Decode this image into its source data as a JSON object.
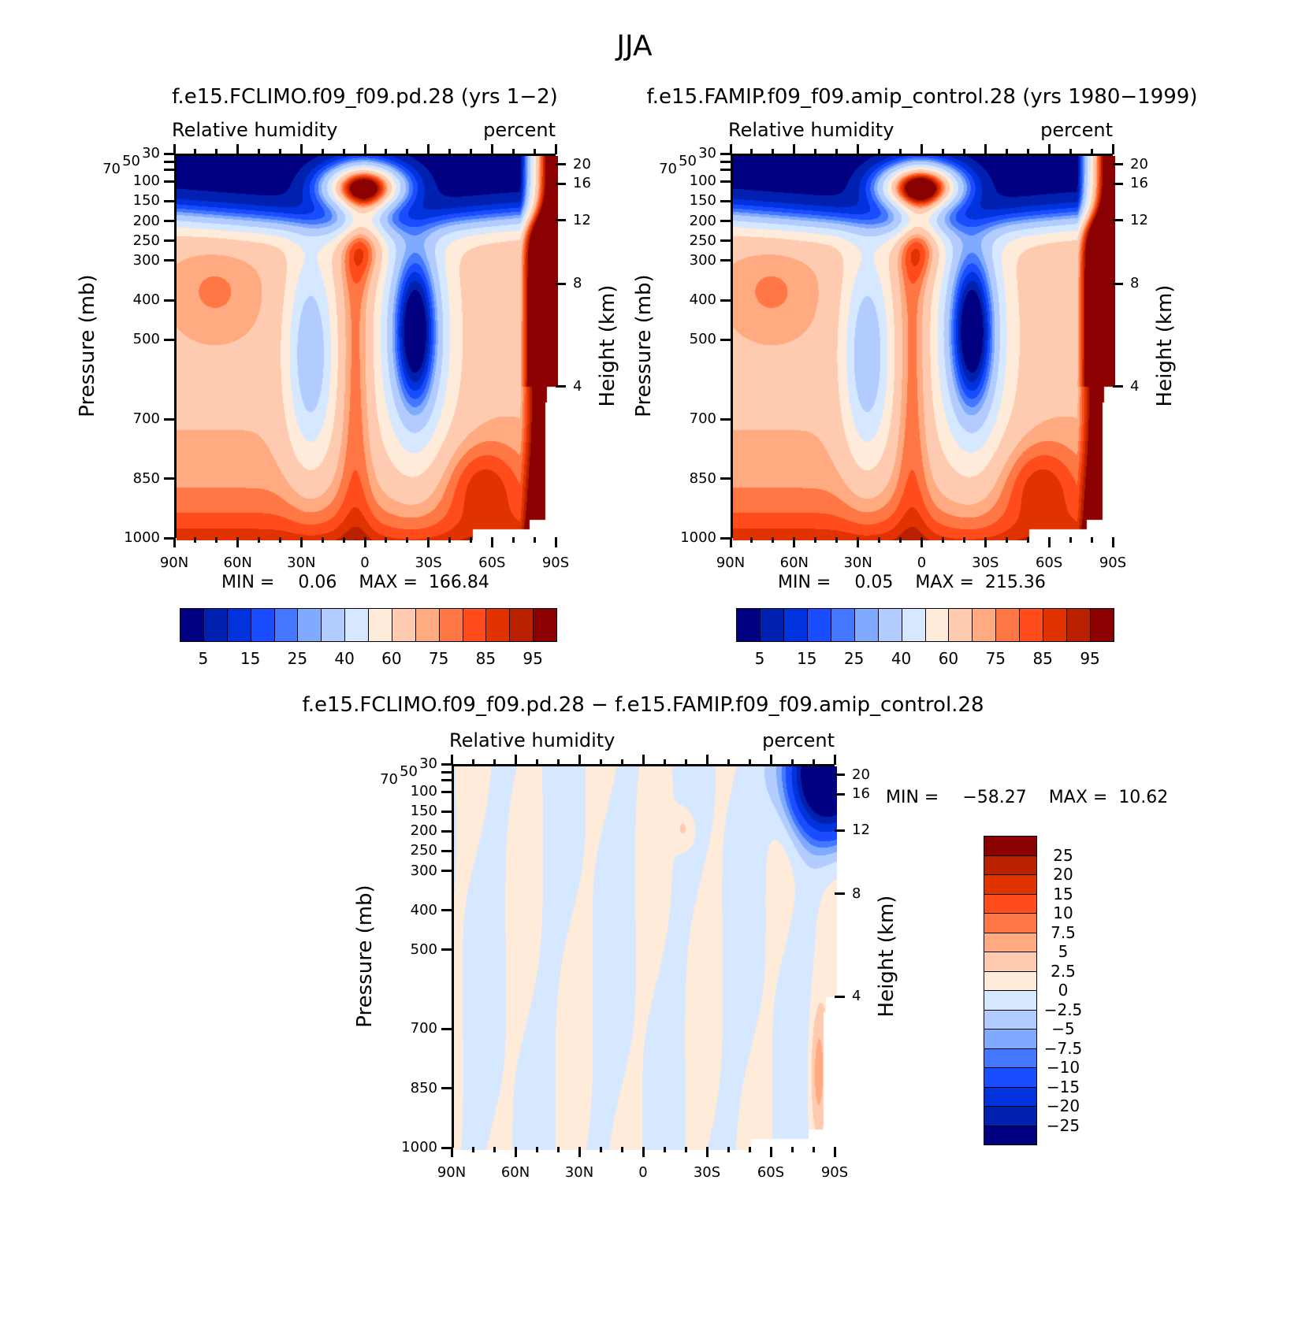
{
  "figure_title": "JJA",
  "chart_data": [
    {
      "type": "heatmap",
      "id": "p1",
      "title": "f.e15.FCLIMO.f09_f09.pd.28 (yrs 1−2)",
      "left_string": "Relative humidity",
      "right_string": "percent",
      "xlabel": "",
      "ylabel": "Pressure (mb)",
      "ylabel_right": "Height (km)",
      "x_ticks": [
        "90N",
        "60N",
        "30N",
        "0",
        "30S",
        "60S",
        "90S"
      ],
      "x_range": [
        90,
        -90
      ],
      "y_range_mb": [
        30,
        1000
      ],
      "y_ticks": [
        30,
        50,
        70,
        100,
        150,
        200,
        250,
        300,
        400,
        500,
        700,
        850,
        1000
      ],
      "y_ticks_right": [
        {
          "km": "20",
          "p": 57
        },
        {
          "km": "16",
          "p": 106
        },
        {
          "km": "12",
          "p": 198
        },
        {
          "km": "8",
          "p": 358
        },
        {
          "km": "4",
          "p": 618
        }
      ],
      "min_label": "MIN =",
      "min_value": "0.06",
      "max_label": "MAX =",
      "max_value": "166.84",
      "levels": [
        5,
        10,
        15,
        20,
        25,
        30,
        40,
        50,
        60,
        70,
        75,
        80,
        85,
        90,
        95
      ],
      "colorbar_labels": [
        "5",
        "15",
        "25",
        "40",
        "60",
        "75",
        "85",
        "95"
      ],
      "field": "climo"
    },
    {
      "type": "heatmap",
      "id": "p2",
      "title": "f.e15.FAMIP.f09_f09.amip_control.28 (yrs 1980−1999)",
      "left_string": "Relative humidity",
      "right_string": "percent",
      "ylabel": "Pressure (mb)",
      "ylabel_right": "Height (km)",
      "x_ticks": [
        "90N",
        "60N",
        "30N",
        "0",
        "30S",
        "60S",
        "90S"
      ],
      "x_range": [
        90,
        -90
      ],
      "y_range_mb": [
        30,
        1000
      ],
      "y_ticks": [
        30,
        50,
        70,
        100,
        150,
        200,
        250,
        300,
        400,
        500,
        700,
        850,
        1000
      ],
      "y_ticks_right": [
        {
          "km": "20",
          "p": 57
        },
        {
          "km": "16",
          "p": 106
        },
        {
          "km": "12",
          "p": 198
        },
        {
          "km": "8",
          "p": 358
        },
        {
          "km": "4",
          "p": 618
        }
      ],
      "min_label": "MIN =",
      "min_value": "0.05",
      "max_label": "MAX =",
      "max_value": "215.36",
      "levels": [
        5,
        10,
        15,
        20,
        25,
        30,
        40,
        50,
        60,
        70,
        75,
        80,
        85,
        90,
        95
      ],
      "colorbar_labels": [
        "5",
        "15",
        "25",
        "40",
        "60",
        "75",
        "85",
        "95"
      ],
      "field": "amip"
    },
    {
      "type": "heatmap",
      "id": "p3",
      "title": "f.e15.FCLIMO.f09_f09.pd.28 − f.e15.FAMIP.f09_f09.amip_control.28",
      "left_string": "Relative humidity",
      "right_string": "percent",
      "ylabel": "Pressure (mb)",
      "ylabel_right": "Height (km)",
      "x_ticks": [
        "90N",
        "60N",
        "30N",
        "0",
        "30S",
        "60S",
        "90S"
      ],
      "x_range": [
        90,
        -90
      ],
      "y_range_mb": [
        30,
        1000
      ],
      "y_ticks": [
        30,
        50,
        70,
        100,
        150,
        200,
        250,
        300,
        400,
        500,
        700,
        850,
        1000
      ],
      "y_ticks_right": [
        {
          "km": "20",
          "p": 57
        },
        {
          "km": "16",
          "p": 106
        },
        {
          "km": "12",
          "p": 198
        },
        {
          "km": "8",
          "p": 358
        },
        {
          "km": "4",
          "p": 618
        }
      ],
      "min_label": "MIN =",
      "min_value": "−58.27",
      "max_label": "MAX =",
      "max_value": "10.62",
      "levels": [
        -25,
        -20,
        -15,
        -10,
        -7.5,
        -5,
        -2.5,
        0,
        2.5,
        5,
        7.5,
        10,
        15,
        20,
        25
      ],
      "colorbar_labels": [
        "−25",
        "−20",
        "−15",
        "−10",
        "−7.5",
        "−5",
        "−2.5",
        "0",
        "2.5",
        "5",
        "7.5",
        "10",
        "15",
        "20",
        "25"
      ],
      "field": "diff"
    }
  ],
  "colors": [
    "#000080",
    "#0020b0",
    "#0033dd",
    "#1a4dff",
    "#4477ff",
    "#80aaff",
    "#b3ccff",
    "#d6e8ff",
    "#ffebd9",
    "#ffcbb0",
    "#ffaa80",
    "#ff7744",
    "#ff4c1a",
    "#e03300",
    "#b82000",
    "#8b0000"
  ]
}
